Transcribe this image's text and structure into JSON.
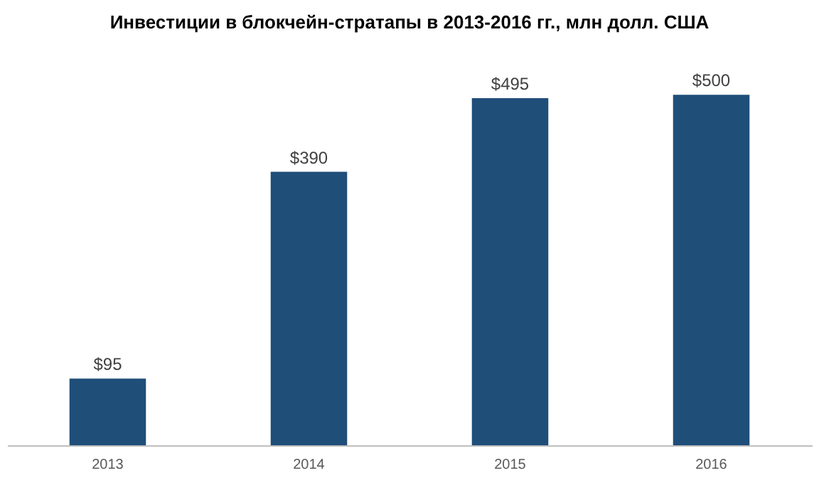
{
  "chart_data": {
    "type": "bar",
    "title": "Инвестиции в блокчейн-стратапы в 2013-2016 гг., млн долл. США",
    "categories": [
      "2013",
      "2014",
      "2015",
      "2016"
    ],
    "values": [
      95,
      390,
      495,
      500
    ],
    "value_labels": [
      "$95",
      "$390",
      "$495",
      "$500"
    ],
    "color": "#1f4e79",
    "grid": false
  }
}
